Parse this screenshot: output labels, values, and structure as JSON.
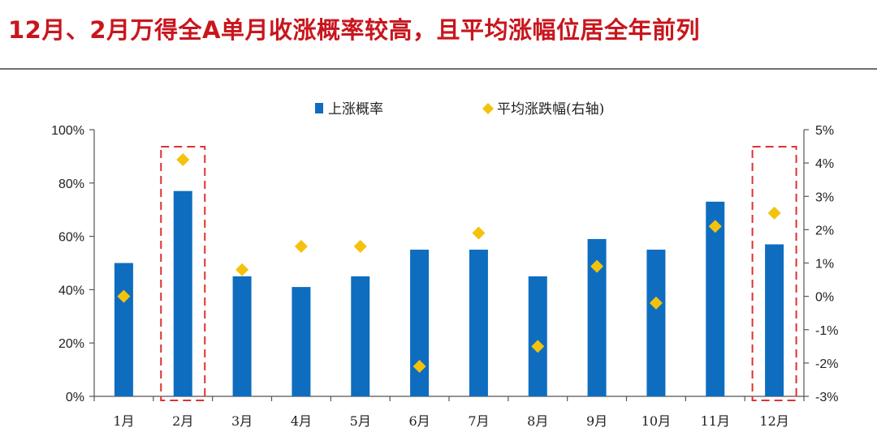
{
  "title": "12月、2月万得全A单月收涨概率较高，且平均涨幅位居全年前列",
  "chart_data": {
    "type": "bar",
    "categories": [
      "1月",
      "2月",
      "3月",
      "4月",
      "5月",
      "6月",
      "7月",
      "8月",
      "9月",
      "10月",
      "11月",
      "12月"
    ],
    "series": [
      {
        "name": "上涨概率",
        "type": "bar",
        "axis": "left",
        "values": [
          50,
          77,
          45,
          41,
          45,
          55,
          55,
          45,
          59,
          55,
          73,
          57
        ]
      },
      {
        "name": "平均涨跌幅(右轴)",
        "type": "scatter",
        "marker": "diamond",
        "axis": "right",
        "values": [
          0.0,
          4.1,
          0.8,
          1.5,
          1.5,
          -2.1,
          1.9,
          -1.5,
          0.9,
          -0.2,
          2.1,
          2.5
        ]
      }
    ],
    "y_left": {
      "range": [
        0,
        100
      ],
      "ticks": [
        "0%",
        "20%",
        "40%",
        "60%",
        "80%",
        "100%"
      ]
    },
    "y_right": {
      "range": [
        -3,
        5
      ],
      "ticks": [
        "-3%",
        "-2%",
        "-1%",
        "0%",
        "1%",
        "2%",
        "3%",
        "4%",
        "5%"
      ]
    },
    "highlighted_categories": [
      "2月",
      "12月"
    ],
    "legend_position": "top-center",
    "grid": false
  },
  "colors": {
    "bar": "#0e6dbf",
    "diamond": "#f4c20d",
    "highlight": "#e03030",
    "title": "#c8161d"
  }
}
